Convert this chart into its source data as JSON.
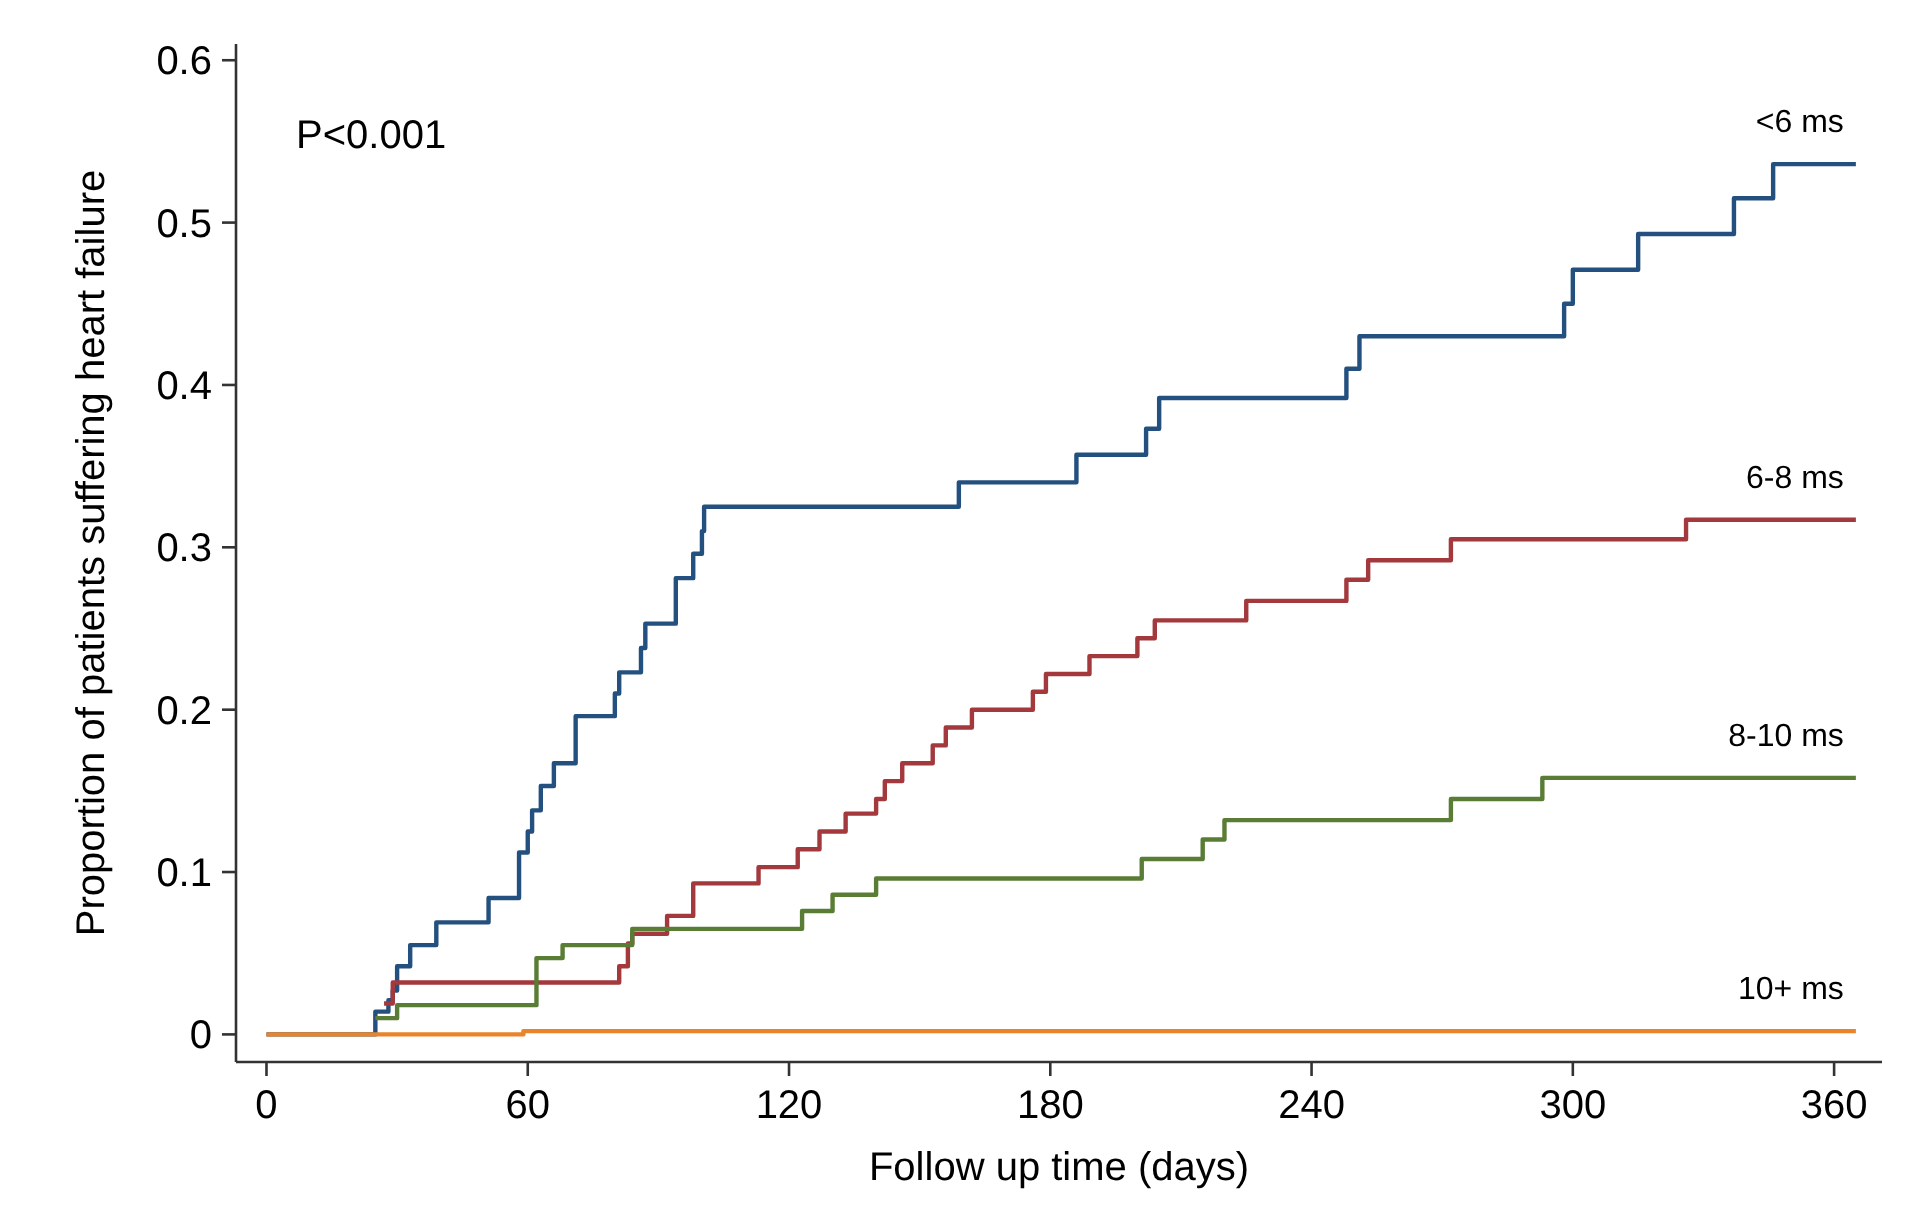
{
  "chart_data": {
    "type": "step",
    "xlabel": "Follow up time (days)",
    "ylabel": "Proportion of patients suffering heart failure",
    "annotations": [
      "P<0.001"
    ],
    "xlim": [
      -7,
      371
    ],
    "ylim": [
      -0.017,
      0.61
    ],
    "xticks": [
      0,
      60,
      120,
      180,
      240,
      300,
      360
    ],
    "yticks": [
      {
        "value": 0,
        "label": "0"
      },
      {
        "value": 0.1,
        "label": "0.1"
      },
      {
        "value": 0.2,
        "label": "0.2"
      },
      {
        "value": 0.3,
        "label": "0.3"
      },
      {
        "value": 0.4,
        "label": "0.4"
      },
      {
        "value": 0.5,
        "label": "0.5"
      },
      {
        "value": 0.6,
        "label": "0.6"
      }
    ],
    "grid": false,
    "legend": false,
    "line_style": "solid",
    "marker": "none",
    "series": [
      {
        "name": "<6 ms",
        "color": "#24507f",
        "x": [
          0,
          25,
          28,
          29,
          30,
          33,
          39,
          51,
          58,
          60,
          61,
          63,
          66,
          71,
          80,
          81,
          86,
          87,
          94,
          98,
          100,
          100.5,
          159,
          186,
          202,
          205,
          248,
          251,
          298,
          300,
          315,
          337,
          346,
          365
        ],
        "values": [
          0,
          0.014,
          0.021,
          0.027,
          0.042,
          0.055,
          0.069,
          0.084,
          0.112,
          0.125,
          0.138,
          0.153,
          0.167,
          0.196,
          0.21,
          0.223,
          0.238,
          0.253,
          0.281,
          0.296,
          0.31,
          0.325,
          0.34,
          0.357,
          0.373,
          0.392,
          0.41,
          0.43,
          0.45,
          0.471,
          0.493,
          0.515,
          0.536,
          0.536
        ]
      },
      {
        "name": "6-8 ms",
        "color": "#a3383d",
        "x": [
          27,
          29,
          81,
          83,
          84,
          92,
          98,
          113,
          122,
          127,
          133,
          140,
          142,
          146,
          153,
          156,
          162,
          176,
          179,
          189,
          200,
          204,
          225,
          248,
          253,
          272,
          326,
          365
        ],
        "values": [
          0.019,
          0.032,
          0.042,
          0.056,
          0.062,
          0.073,
          0.093,
          0.103,
          0.114,
          0.125,
          0.136,
          0.145,
          0.156,
          0.167,
          0.178,
          0.189,
          0.2,
          0.211,
          0.222,
          0.233,
          0.244,
          0.255,
          0.267,
          0.28,
          0.292,
          0.305,
          0.317,
          0.317
        ]
      },
      {
        "name": "8-10 ms",
        "color": "#5a7d35",
        "x": [
          25,
          30,
          62,
          68,
          84,
          123,
          130,
          140,
          201,
          215,
          220,
          272,
          293,
          365
        ],
        "values": [
          0.01,
          0.018,
          0.047,
          0.055,
          0.065,
          0.076,
          0.086,
          0.096,
          0.108,
          0.12,
          0.132,
          0.145,
          0.158,
          0.158
        ]
      },
      {
        "name": "10+ ms",
        "color": "#e8842c",
        "x": [
          0,
          59,
          365
        ],
        "values": [
          0,
          0.002,
          0.002
        ]
      }
    ]
  }
}
